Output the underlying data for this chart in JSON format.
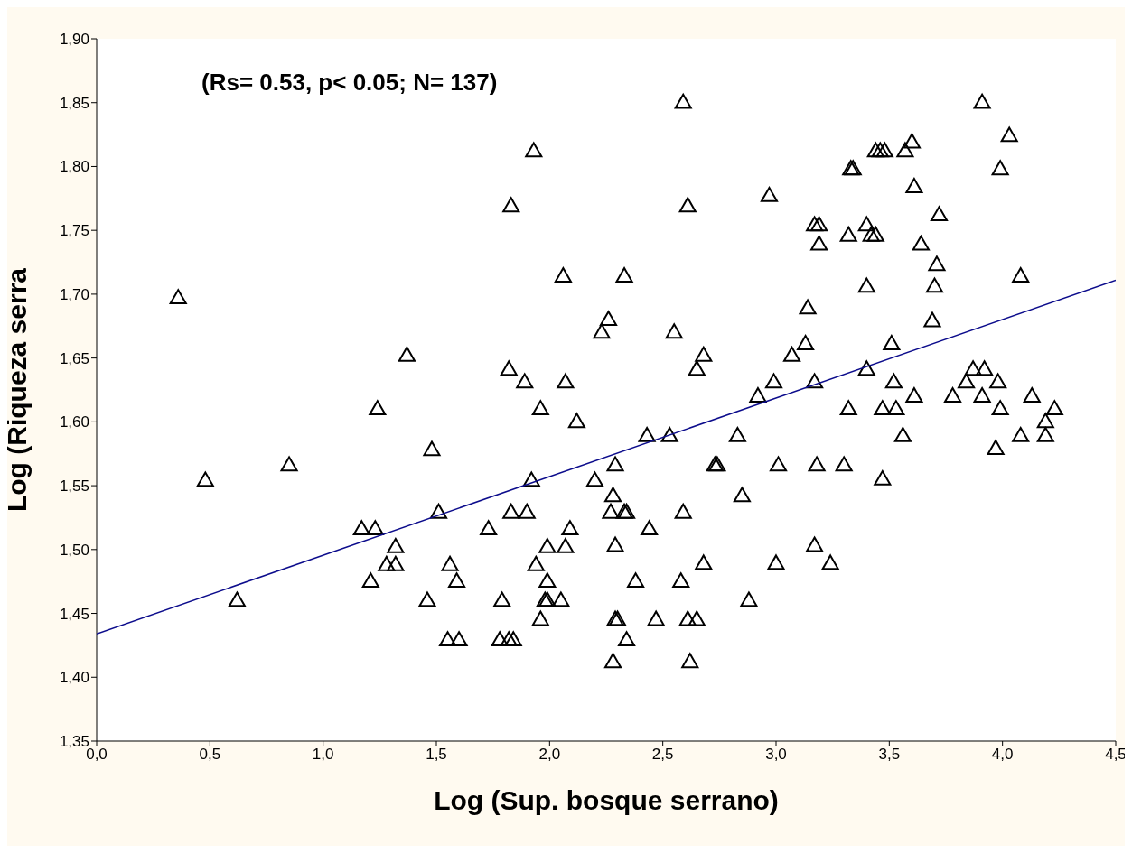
{
  "chart_data": {
    "type": "scatter",
    "xlabel": "Log (Sup. bosque serrano)",
    "ylabel": "Log (Riqueza serra",
    "annotations": [
      "(Rs= 0.53, p< 0.05; N= 137)"
    ],
    "xlim": [
      0,
      4.5
    ],
    "xticks": [
      {
        "value": 0,
        "label": "0,0"
      },
      {
        "value": 0.5,
        "label": "0,5"
      },
      {
        "value": 1,
        "label": "1,0"
      },
      {
        "value": 1.5,
        "label": "1,5"
      },
      {
        "value": 2,
        "label": "2,0"
      },
      {
        "value": 2.5,
        "label": "2,5"
      },
      {
        "value": 3,
        "label": "3,0"
      },
      {
        "value": 3.5,
        "label": "3,5"
      },
      {
        "value": 4,
        "label": "4,0"
      },
      {
        "value": 4.5,
        "label": "4,5"
      }
    ],
    "ylim": [
      1.35,
      1.9
    ],
    "yticks": [
      {
        "value": 1.35,
        "label": "1,35"
      },
      {
        "value": 1.4,
        "label": "1,40"
      },
      {
        "value": 1.45,
        "label": "1,45"
      },
      {
        "value": 1.5,
        "label": "1,50"
      },
      {
        "value": 1.55,
        "label": "1,55"
      },
      {
        "value": 1.6,
        "label": "1,60"
      },
      {
        "value": 1.65,
        "label": "1,65"
      },
      {
        "value": 1.7,
        "label": "1,70"
      },
      {
        "value": 1.75,
        "label": "1,75"
      },
      {
        "value": 1.8,
        "label": "1,80"
      },
      {
        "value": 1.85,
        "label": "1,85"
      },
      {
        "value": 1.9,
        "label": "1,90"
      }
    ],
    "series": [
      {
        "marker": "triangle",
        "color": "#000000",
        "x": [
          0.36,
          0.48,
          0.62,
          0.85,
          1.17,
          1.23,
          1.21,
          1.24,
          1.28,
          1.32,
          1.32,
          1.37,
          1.46,
          1.48,
          1.51,
          1.55,
          1.56,
          1.59,
          1.6,
          1.73,
          1.78,
          1.82,
          1.84,
          1.79,
          1.83,
          1.83,
          1.82,
          1.89,
          1.9,
          1.92,
          1.93,
          1.94,
          1.96,
          1.96,
          1.98,
          1.99,
          1.99,
          1.99,
          2.05,
          2.06,
          2.07,
          2.07,
          2.09,
          2.12,
          2.2,
          2.23,
          2.26,
          2.27,
          2.28,
          2.28,
          2.29,
          2.29,
          2.29,
          2.3,
          2.33,
          2.33,
          2.34,
          2.34,
          2.38,
          2.43,
          2.44,
          2.47,
          2.53,
          2.55,
          2.58,
          2.59,
          2.59,
          2.61,
          2.61,
          2.62,
          2.65,
          2.65,
          2.68,
          2.68,
          2.73,
          2.74,
          2.83,
          2.85,
          2.88,
          2.92,
          2.97,
          2.99,
          3.0,
          3.01,
          3.07,
          3.13,
          3.14,
          3.17,
          3.17,
          3.17,
          3.18,
          3.19,
          3.19,
          3.24,
          3.3,
          3.32,
          3.32,
          3.33,
          3.34,
          3.4,
          3.4,
          3.4,
          3.42,
          3.44,
          3.44,
          3.46,
          3.47,
          3.47,
          3.48,
          3.51,
          3.52,
          3.53,
          3.56,
          3.57,
          3.6,
          3.61,
          3.61,
          3.64,
          3.69,
          3.7,
          3.71,
          3.72,
          3.78,
          3.84,
          3.87,
          3.91,
          3.91,
          3.92,
          3.97,
          3.98,
          3.99,
          3.99,
          4.03,
          4.08,
          4.08,
          4.13,
          4.19,
          4.19,
          4.23
        ],
        "values": [
          1.697,
          1.554,
          1.46,
          1.566,
          1.516,
          1.516,
          1.475,
          1.61,
          1.488,
          1.488,
          1.502,
          1.652,
          1.46,
          1.578,
          1.529,
          1.429,
          1.488,
          1.475,
          1.429,
          1.516,
          1.429,
          1.641,
          1.429,
          1.46,
          1.769,
          1.529,
          1.429,
          1.631,
          1.529,
          1.554,
          1.812,
          1.488,
          1.61,
          1.445,
          1.46,
          1.502,
          1.475,
          1.46,
          1.46,
          1.714,
          1.631,
          1.502,
          1.516,
          1.6,
          1.554,
          1.67,
          1.68,
          1.529,
          1.542,
          1.412,
          1.566,
          1.503,
          1.445,
          1.445,
          1.529,
          1.714,
          1.429,
          1.529,
          1.475,
          1.589,
          1.516,
          1.445,
          1.589,
          1.67,
          1.475,
          1.529,
          1.85,
          1.769,
          1.445,
          1.412,
          1.641,
          1.445,
          1.652,
          1.489,
          1.566,
          1.566,
          1.589,
          1.542,
          1.46,
          1.62,
          1.777,
          1.631,
          1.489,
          1.566,
          1.652,
          1.661,
          1.689,
          1.754,
          1.631,
          1.503,
          1.566,
          1.754,
          1.739,
          1.489,
          1.566,
          1.746,
          1.61,
          1.798,
          1.798,
          1.754,
          1.641,
          1.706,
          1.746,
          1.812,
          1.746,
          1.812,
          1.555,
          1.61,
          1.812,
          1.661,
          1.631,
          1.61,
          1.589,
          1.812,
          1.819,
          1.62,
          1.784,
          1.739,
          1.679,
          1.706,
          1.723,
          1.762,
          1.62,
          1.631,
          1.641,
          1.85,
          1.62,
          1.641,
          1.579,
          1.631,
          1.798,
          1.61,
          1.824,
          1.714,
          1.589,
          1.62,
          1.6,
          1.589,
          1.61
        ]
      },
      {
        "type": "line",
        "color": "#0c0c8c",
        "x": [
          0,
          4.5
        ],
        "values": [
          1.434,
          1.711
        ]
      }
    ]
  }
}
